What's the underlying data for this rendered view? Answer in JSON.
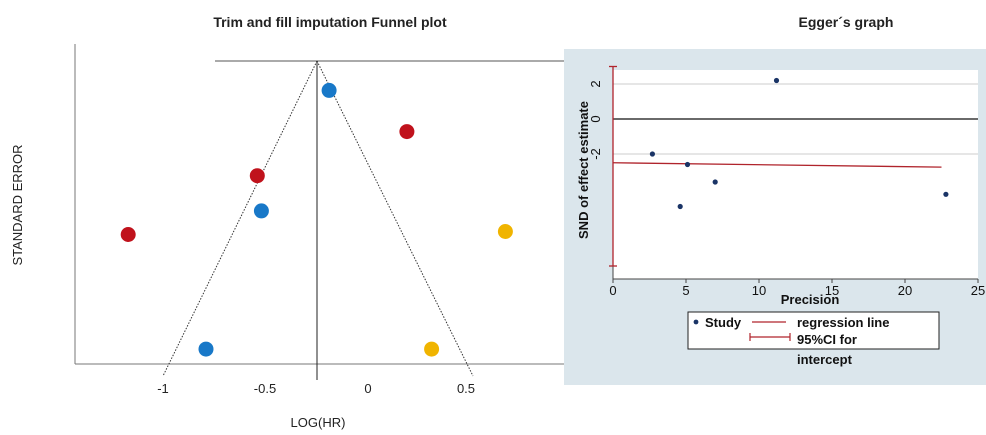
{
  "chart_data": [
    {
      "type": "scatter",
      "title": "Trim and fill imputation Funnel plot",
      "xlabel": "LOG(HR)",
      "ylabel": "STANDARD  ERROR",
      "xlim": [
        -1.45,
        0.95
      ],
      "xticks": [
        "-1",
        "-0.5",
        "0",
        "0.5"
      ],
      "funnel_center": -0.25,
      "colors": {
        "blue": "#1878c8",
        "red": "#c0121c",
        "yellow": "#f0b400"
      },
      "series": [
        {
          "color": "blue",
          "points": [
            {
              "x": -0.19,
              "y": 0.1
            },
            {
              "x": -0.52,
              "y": 0.51
            },
            {
              "x": -0.79,
              "y": 0.98
            }
          ]
        },
        {
          "color": "red",
          "points": [
            {
              "x": 0.19,
              "y": 0.24
            },
            {
              "x": -0.54,
              "y": 0.39
            },
            {
              "x": -1.17,
              "y": 0.59
            }
          ]
        },
        {
          "color": "yellow",
          "points": [
            {
              "x": 0.67,
              "y": 0.58
            },
            {
              "x": 0.31,
              "y": 0.98
            }
          ]
        }
      ]
    },
    {
      "type": "scatter",
      "title": "Egger´s graph",
      "xlabel": "Precision",
      "ylabel": "SND of effect estimate",
      "xlim": [
        0,
        25
      ],
      "ylim": [
        -4.6,
        2.8
      ],
      "xticks": [
        "0",
        "5",
        "10",
        "15",
        "20",
        "25"
      ],
      "yticks": [
        "2",
        "0",
        "-2"
      ],
      "points": [
        {
          "x": 11.2,
          "y": 2.2
        },
        {
          "x": 2.7,
          "y": -2.0
        },
        {
          "x": 5.1,
          "y": -2.6
        },
        {
          "x": 7.0,
          "y": -3.6
        },
        {
          "x": 4.6,
          "y": -5.0
        },
        {
          "x": 22.8,
          "y": -4.3
        }
      ],
      "regression_line": [
        {
          "x": 0,
          "y": -2.5
        },
        {
          "x": 22.5,
          "y": -2.75
        }
      ],
      "ci_intercept": [
        3.0,
        -8.4
      ],
      "legend": {
        "study": "Study",
        "regression": "regression line",
        "ci_line1": "95%CI for",
        "ci_line2": "intercept"
      },
      "colors": {
        "panel_bg": "#dbe6ec",
        "point": "#1a3466",
        "regression": "#b0242c",
        "ci": "#b0242c"
      }
    }
  ]
}
